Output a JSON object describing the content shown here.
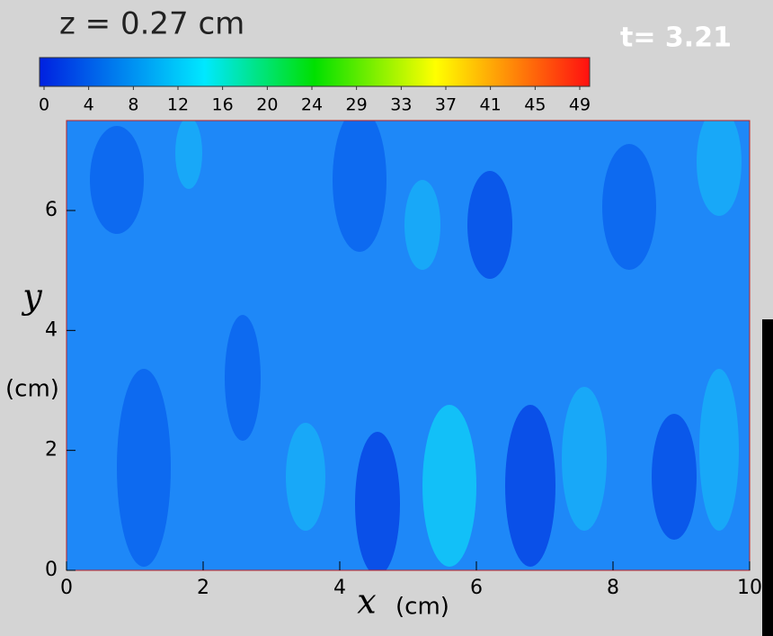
{
  "chart_data": {
    "type": "contour",
    "title": "z = 0.27 cm",
    "annotation": "t= 3.21",
    "x_label": "x",
    "x_unit": "(cm)",
    "y_label": "y",
    "y_unit": "(cm)",
    "xlim": [
      0,
      10
    ],
    "xticks": [
      0,
      2,
      4,
      6,
      8,
      10
    ],
    "ylim": [
      0,
      7.5
    ],
    "yticks": [
      0,
      2,
      4,
      6
    ],
    "colorbar_lim": [
      0,
      49
    ],
    "colorbar_ticks": [
      0,
      {
        "value": 4.08,
        "label": "4"
      },
      {
        "value": 8.17,
        "label": "8"
      },
      {
        "value": 12.25,
        "label": "12"
      },
      {
        "value": 16.33,
        "label": "16"
      },
      {
        "value": 20.42,
        "label": "20"
      },
      {
        "value": 24.5,
        "label": "24"
      },
      {
        "value": 28.58,
        "label": "29"
      },
      {
        "value": 32.67,
        "label": "33"
      },
      {
        "value": 36.75,
        "label": "37"
      },
      {
        "value": 40.83,
        "label": "41"
      },
      {
        "value": 44.92,
        "label": "45"
      },
      49
    ],
    "frame_color": "#c02020"
  }
}
